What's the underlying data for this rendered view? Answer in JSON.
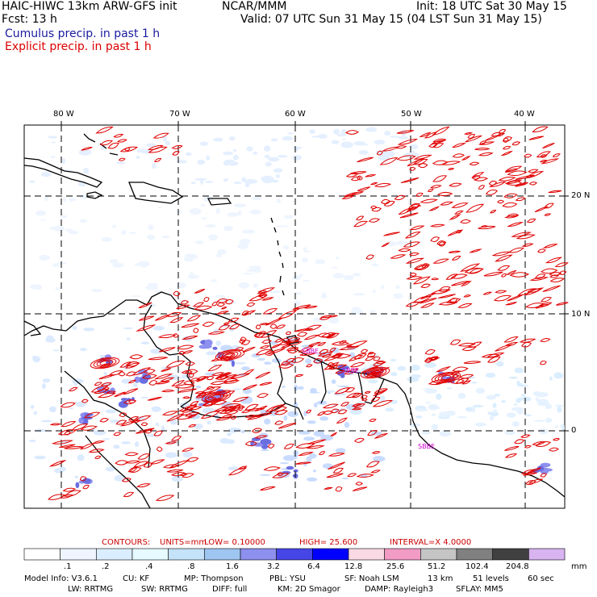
{
  "header": {
    "title_left": "HAIC-HIWC 13km ARW-GFS init",
    "org": "NCAR/MMM",
    "init": "Init: 18 UTC Sat 30 May 15",
    "fcst": "Fcst:   13 h",
    "valid": "Valid: 07 UTC Sun 31 May 15 (04 LST Sun 31 May 15)",
    "cumulus_label": "Cumulus precip. in past 1 h",
    "explicit_label": "Explicit precip. in past 1 h"
  },
  "axes": {
    "lon_labels": [
      "80 W",
      "70 W",
      "60 W",
      "50 W",
      "40 W"
    ],
    "lat_labels": [
      "20 N",
      "10 N",
      "0"
    ]
  },
  "map_labels": [
    "SBBE",
    "SBBE",
    "SBBE"
  ],
  "contours": {
    "prefix": "CONTOURS:",
    "units": "UNITS=mm",
    "low": "LOW=  0.10000",
    "high": "HIGH=  25.600",
    "interval": "INTERVAL=X  4.0000"
  },
  "legend": {
    "ticks": [
      ".1",
      ".2",
      ".4",
      ".8",
      "1.6",
      "3.2",
      "6.4",
      "12.8",
      "25.6",
      "51.2",
      "102.4",
      "204.8"
    ],
    "units": "mm",
    "colors": [
      "#ffffff",
      "#eef5ff",
      "#dbeeff",
      "#e6faff",
      "#c4e2f8",
      "#9fc6f0",
      "#8d90ee",
      "#4646e6",
      "#0000ff",
      "#f9d9e4",
      "#f29bc4",
      "#c5c5c5",
      "#808080",
      "#404040",
      "#d8b4f0"
    ]
  },
  "model_info": {
    "line1": [
      "Model Info: V3.6.1",
      "CU: KF",
      "MP: Thompson",
      "PBL: YSU",
      "SF: Noah LSM",
      "13 km",
      "51 levels",
      "60 sec"
    ],
    "line2": [
      "LW: RRTMG",
      "SW: RRTMG",
      "DIFF: full",
      "KM: 2D Smagor",
      "DAMP: Rayleigh3",
      "SFLAY: MM5"
    ]
  }
}
